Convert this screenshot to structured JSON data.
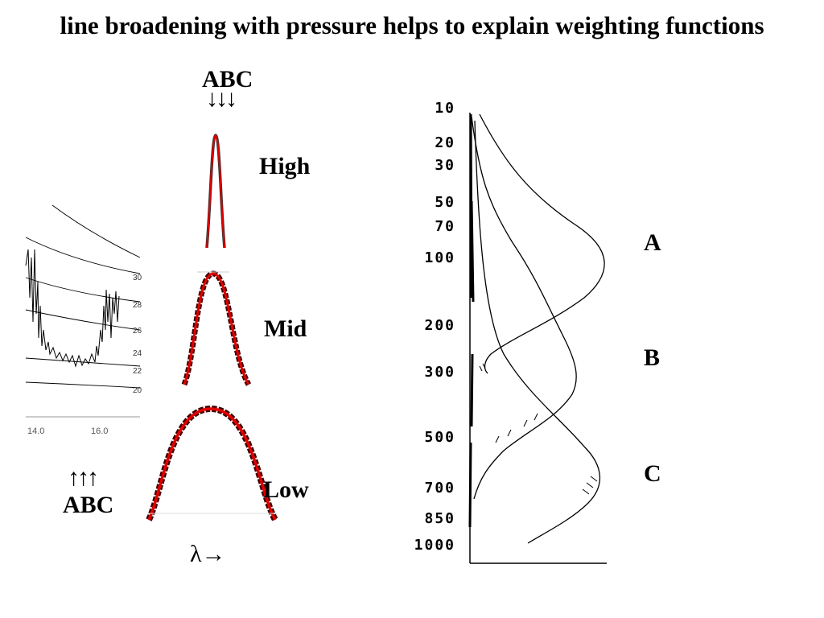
{
  "title": "line broadening with pressure helps to explain weighting functions",
  "top_arrows_letters": "ABC",
  "top_arrows": "↓↓↓",
  "bottom_arrows": "↑↑↑",
  "bottom_arrows_letters": "ABC",
  "line_profiles": [
    {
      "label": "High"
    },
    {
      "label": "Mid"
    },
    {
      "label": "Low"
    }
  ],
  "lambda_axis": "λ→",
  "spectrum": {
    "x_ticks": [
      "14.0",
      "16.0"
    ],
    "side_labels": [
      "30",
      "28",
      "26",
      "24",
      "22",
      "20"
    ]
  },
  "weighting_chart": {
    "pressure_levels": [
      "10",
      "20",
      "30",
      "50",
      "70",
      "100",
      "200",
      "300",
      "500",
      "700",
      "850",
      "1000"
    ],
    "curves": [
      {
        "label": "A"
      },
      {
        "label": "B"
      },
      {
        "label": "C"
      }
    ]
  },
  "colors": {
    "profile_red": "#e00000",
    "profile_dark": "#400000"
  }
}
